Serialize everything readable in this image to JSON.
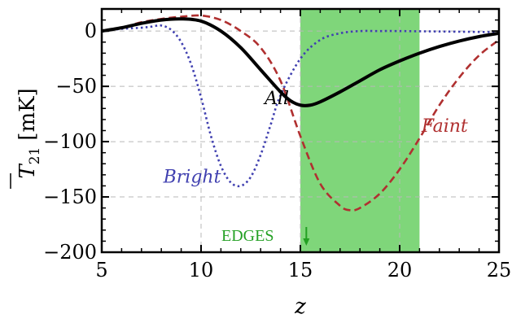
{
  "chart_data": {
    "type": "line",
    "xlabel": "z",
    "ylabel_main": "T",
    "ylabel_sub": "21",
    "ylabel_unit": "[mK]",
    "xlim": [
      5,
      25
    ],
    "ylim": [
      -200,
      20
    ],
    "xticks": [
      5,
      10,
      15,
      20,
      25
    ],
    "yticks": [
      0,
      -50,
      -100,
      -150,
      -200
    ],
    "xtick_labels": [
      "5",
      "10",
      "15",
      "20",
      "25"
    ],
    "ytick_labels": [
      "0",
      "−50",
      "−100",
      "−150",
      "−200"
    ],
    "grid": true,
    "shaded_band": {
      "x_start": 15,
      "x_end": 21,
      "color": "#7fd67a"
    },
    "annotation": {
      "text": "EDGES",
      "x": 15.3,
      "color": "#23a023"
    },
    "series": [
      {
        "name": "All",
        "color": "#000000",
        "style": "solid",
        "x": [
          5,
          6,
          7,
          8,
          9,
          10,
          11,
          12,
          13,
          14,
          14.5,
          15,
          15.5,
          16,
          17,
          18,
          19,
          20,
          21,
          22,
          23,
          24,
          25
        ],
        "y": [
          0,
          3,
          7,
          10,
          11,
          9,
          0,
          -15,
          -35,
          -55,
          -63,
          -67,
          -67,
          -64,
          -55,
          -45,
          -35,
          -27,
          -20,
          -14,
          -9,
          -5,
          -2
        ]
      },
      {
        "name": "Bright",
        "color": "#4040b0",
        "style": "dotted",
        "x": [
          5,
          6,
          7,
          7.5,
          8,
          8.5,
          9,
          9.5,
          10,
          10.5,
          11,
          11.5,
          12,
          12.5,
          13,
          13.5,
          14,
          15,
          16,
          17,
          18,
          19,
          20,
          25
        ],
        "y": [
          0,
          2,
          3,
          4,
          5,
          1,
          -10,
          -30,
          -60,
          -95,
          -122,
          -137,
          -140,
          -132,
          -112,
          -85,
          -58,
          -25,
          -8,
          -2,
          0,
          0,
          0,
          -1
        ]
      },
      {
        "name": "Faint",
        "color": "#b03030",
        "style": "dashed",
        "x": [
          5,
          6,
          7,
          8,
          9,
          10,
          11,
          12,
          13,
          14,
          15,
          16,
          17,
          17.5,
          18,
          19,
          20,
          21,
          22,
          23,
          24,
          25
        ],
        "y": [
          0,
          3,
          8,
          11,
          13,
          14,
          10,
          0,
          -15,
          -45,
          -95,
          -138,
          -158,
          -162,
          -160,
          -147,
          -125,
          -97,
          -67,
          -42,
          -22,
          -8
        ]
      }
    ],
    "label_positions": {
      "All": {
        "x": 13.2,
        "y": -66
      },
      "Bright": {
        "x": 8.1,
        "y": -137
      },
      "Faint": {
        "x": 21.1,
        "y": -91
      }
    }
  }
}
